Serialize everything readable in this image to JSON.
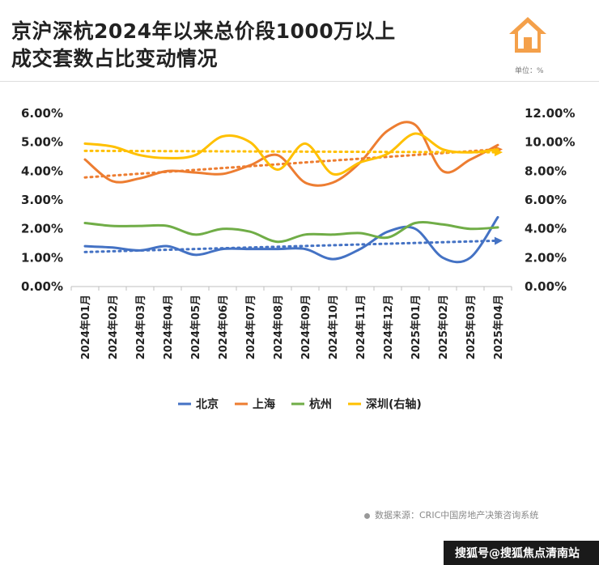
{
  "title_line1": "京沪深杭2024年以来总价段1000万以上",
  "title_line2": "成交套数占比变动情况",
  "unit_label": "单位：%",
  "source_text": "数据来源：CRIC中国房地产决策咨询系统",
  "watermark_text": "搜狐号@搜狐焦点清南站",
  "chart_data": {
    "type": "line",
    "title": "京沪深杭2024年以来总价段1000万以上成交套数占比变动情况",
    "categories": [
      "2024年01月",
      "2024年02月",
      "2024年03月",
      "2024年04月",
      "2024年05月",
      "2024年06月",
      "2024年07月",
      "2024年08月",
      "2024年09月",
      "2024年10月",
      "2024年11月",
      "2024年12月",
      "2025年01月",
      "2025年02月",
      "2025年03月",
      "2025年04月"
    ],
    "left_axis": {
      "min": 0,
      "max": 6,
      "ticks": [
        "0.00%",
        "1.00%",
        "2.00%",
        "3.00%",
        "4.00%",
        "5.00%",
        "6.00%"
      ]
    },
    "right_axis": {
      "min": 0,
      "max": 12,
      "ticks": [
        "0.00%",
        "2.00%",
        "4.00%",
        "6.00%",
        "8.00%",
        "10.00%",
        "12.00%"
      ]
    },
    "series": [
      {
        "name": "北京",
        "axis": "left",
        "color": "#4472C4",
        "trendline": true,
        "values": [
          1.4,
          1.35,
          1.25,
          1.4,
          1.1,
          1.3,
          1.3,
          1.3,
          1.3,
          0.95,
          1.3,
          1.9,
          2.0,
          1.0,
          1.0,
          2.4
        ]
      },
      {
        "name": "上海",
        "axis": "left",
        "color": "#ED7D31",
        "trendline": true,
        "values": [
          4.4,
          3.65,
          3.75,
          4.0,
          3.95,
          3.9,
          4.2,
          4.55,
          3.6,
          3.6,
          4.3,
          5.4,
          5.6,
          4.0,
          4.4,
          4.9
        ]
      },
      {
        "name": "杭州",
        "axis": "left",
        "color": "#70AD47",
        "trendline": false,
        "values": [
          2.2,
          2.1,
          2.1,
          2.1,
          1.8,
          2.0,
          1.9,
          1.55,
          1.8,
          1.8,
          1.85,
          1.7,
          2.2,
          2.15,
          2.0,
          2.05
        ]
      },
      {
        "name": "深圳(右轴)",
        "axis": "right",
        "color": "#FFC000",
        "trendline": true,
        "values": [
          9.9,
          9.7,
          9.1,
          8.9,
          9.1,
          10.4,
          10.0,
          8.1,
          9.9,
          7.8,
          8.6,
          9.2,
          10.6,
          9.5,
          9.3,
          9.5
        ]
      }
    ],
    "legend_position": "bottom"
  }
}
